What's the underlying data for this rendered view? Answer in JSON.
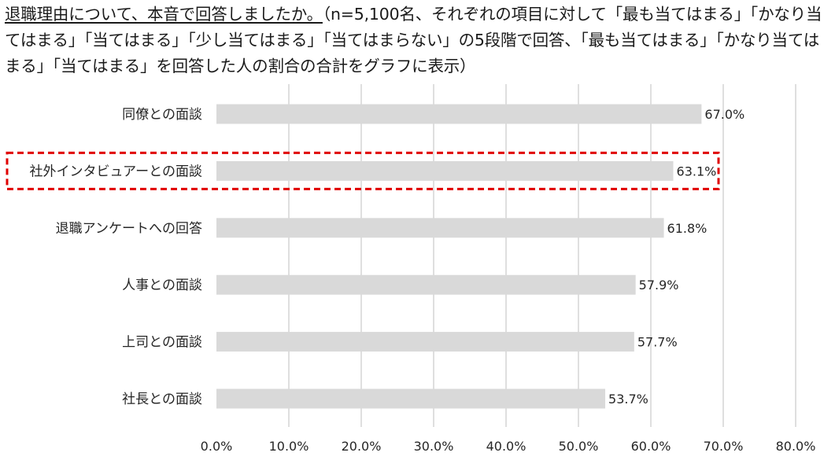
{
  "title": {
    "underlined": "退職理由について、本音で回答しましたか。",
    "rest": "（n=5,100名、それぞれの項目に対して「最も当てはまる」「かなり当てはまる」「当てはまる」「少し当てはまる」「当てはまらない」の5段階で回答、「最も当てはまる」「かなり当てはまる」「当てはまる」を回答した人の割合の合計をグラフに表示）"
  },
  "chart_data": {
    "type": "bar",
    "orientation": "horizontal",
    "categories": [
      "同僚との面談",
      "社外インタビュアーとの面談",
      "退職アンケートへの回答",
      "人事との面談",
      "上司との面談",
      "社長との面談"
    ],
    "values": [
      67.0,
      63.1,
      61.8,
      57.9,
      57.7,
      53.7
    ],
    "value_labels": [
      "67.0%",
      "63.1%",
      "61.8%",
      "57.9%",
      "57.7%",
      "53.7%"
    ],
    "xlim": [
      0,
      80
    ],
    "x_ticks": [
      "0.0%",
      "10.0%",
      "20.0%",
      "30.0%",
      "40.0%",
      "50.0%",
      "60.0%",
      "70.0%",
      "80.0%"
    ],
    "grid": "vertical",
    "bar_color": "#d9d9d9",
    "gridline_color": "#bfbfbf",
    "highlight": {
      "category": "社外インタビュアーとの面談",
      "style": "dashed box",
      "color": "#e00000"
    }
  }
}
